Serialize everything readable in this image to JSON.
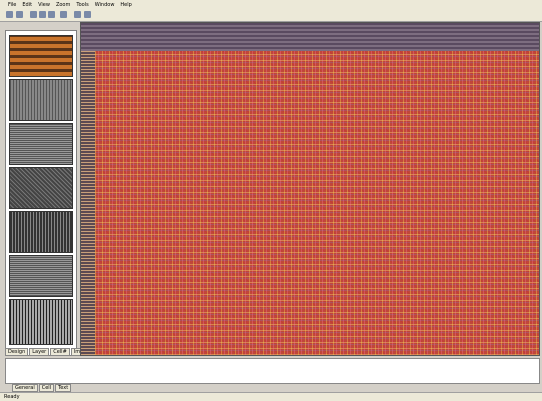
{
  "menu": [
    "File",
    "Edit",
    "View",
    "Zoom",
    "Tools",
    "Window",
    "Help"
  ],
  "side_tabs": [
    "Design",
    "Layer",
    "Cell#",
    "Image"
  ],
  "bottom_tabs": [
    "General",
    "Cell",
    "Text"
  ],
  "status": {
    "left": "Ready"
  }
}
